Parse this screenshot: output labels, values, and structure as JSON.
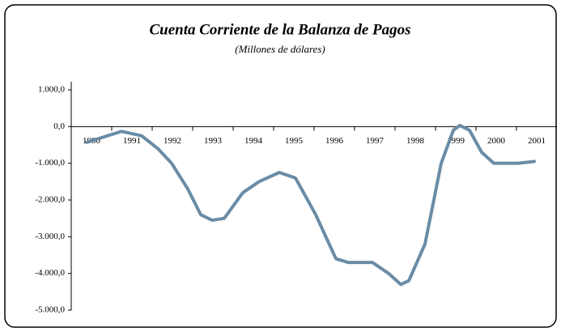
{
  "chart_data": {
    "type": "line",
    "title": "Cuenta Corriente de la Balanza de Pagos",
    "subtitle": "(Millones de dólares)",
    "x": [
      1990.38,
      1991.24,
      1991.74,
      1992.14,
      1992.48,
      1992.88,
      1993.2,
      1993.48,
      1993.78,
      1994.24,
      1994.64,
      1995.14,
      1995.54,
      1996.04,
      1996.54,
      1996.84,
      1997.44,
      1997.84,
      1998.14,
      1998.34,
      1998.74,
      1999.14,
      1999.44,
      1999.6,
      1999.84,
      2000.14,
      2000.44,
      2001.04,
      2001.44
    ],
    "series": [
      {
        "name": "Cuenta Corriente",
        "color": "#6a8ca6",
        "values": [
          -430,
          -130,
          -250,
          -600,
          -1000,
          -1700,
          -2400,
          -2550,
          -2500,
          -1800,
          -1500,
          -1250,
          -1400,
          -2400,
          -3600,
          -3700,
          -3700,
          -4000,
          -4300,
          -4200,
          -3200,
          -1000,
          -100,
          30,
          -100,
          -700,
          -1000,
          -1000,
          -950
        ]
      }
    ],
    "xlim": [
      1990,
      2002
    ],
    "xticks": [
      1990,
      1991,
      1992,
      1993,
      1994,
      1995,
      1996,
      1997,
      1998,
      1999,
      2000,
      2001
    ],
    "ylim": [
      -5000,
      1000
    ],
    "yticks": [
      {
        "value": 1000,
        "label": "1.000,0"
      },
      {
        "value": 0,
        "label": "0,0"
      },
      {
        "value": -1000,
        "label": "-1.000,0"
      },
      {
        "value": -2000,
        "label": "-2.000,0"
      },
      {
        "value": -3000,
        "label": "-3.000,0"
      },
      {
        "value": -4000,
        "label": "-4.000,0"
      },
      {
        "value": -5000,
        "label": "-5.000,0"
      }
    ],
    "grid": false
  }
}
